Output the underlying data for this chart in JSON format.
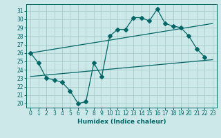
{
  "title": "",
  "xlabel": "Humidex (Indice chaleur)",
  "background_color": "#cce8e8",
  "grid_color": "#aacccc",
  "line_color": "#006666",
  "xlim": [
    -0.5,
    23.5
  ],
  "ylim": [
    19.5,
    31.8
  ],
  "yticks": [
    20,
    21,
    22,
    23,
    24,
    25,
    26,
    27,
    28,
    29,
    30,
    31
  ],
  "xticks": [
    0,
    1,
    2,
    3,
    4,
    5,
    6,
    7,
    8,
    9,
    10,
    11,
    12,
    13,
    14,
    15,
    16,
    17,
    18,
    19,
    20,
    21,
    22,
    23
  ],
  "line1_x": [
    0,
    1,
    2,
    3,
    4,
    5,
    6,
    7,
    8,
    9,
    10,
    11,
    12,
    13,
    14,
    15,
    16,
    17,
    18,
    19,
    20,
    21,
    22
  ],
  "line1_y": [
    26.0,
    24.8,
    23.0,
    22.8,
    22.5,
    21.5,
    20.0,
    20.2,
    24.8,
    23.2,
    28.0,
    28.8,
    28.8,
    30.2,
    30.2,
    29.8,
    31.2,
    29.5,
    29.2,
    29.0,
    28.0,
    26.5,
    25.5
  ],
  "line2_x": [
    0,
    23
  ],
  "line2_y": [
    26.0,
    29.5
  ],
  "line3_x": [
    0,
    23
  ],
  "line3_y": [
    23.2,
    25.2
  ],
  "marker_size": 3
}
